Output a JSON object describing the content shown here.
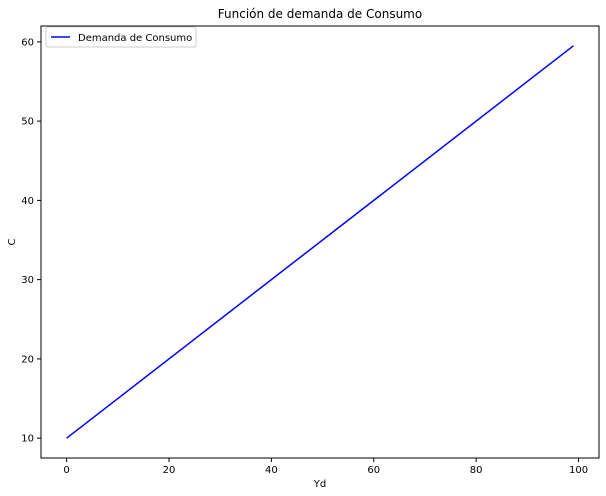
{
  "chart_data": {
    "type": "line",
    "title": "Función de demanda de Consumo",
    "xlabel": "Yd",
    "ylabel": "C",
    "xlim": [
      -5,
      104
    ],
    "ylim": [
      7.5,
      62.0
    ],
    "xticks": [
      0,
      20,
      40,
      60,
      80,
      100
    ],
    "yticks": [
      10,
      20,
      30,
      40,
      50,
      60
    ],
    "xtick_labels": [
      "0",
      "20",
      "40",
      "60",
      "80",
      "100"
    ],
    "ytick_labels": [
      "10",
      "20",
      "30",
      "40",
      "50",
      "60"
    ],
    "grid": false,
    "legend_position": "top-left",
    "series": [
      {
        "name": "Demanda de Consumo",
        "color": "#0000ff",
        "x": [
          0,
          99
        ],
        "y": [
          10,
          59.5
        ]
      }
    ]
  }
}
